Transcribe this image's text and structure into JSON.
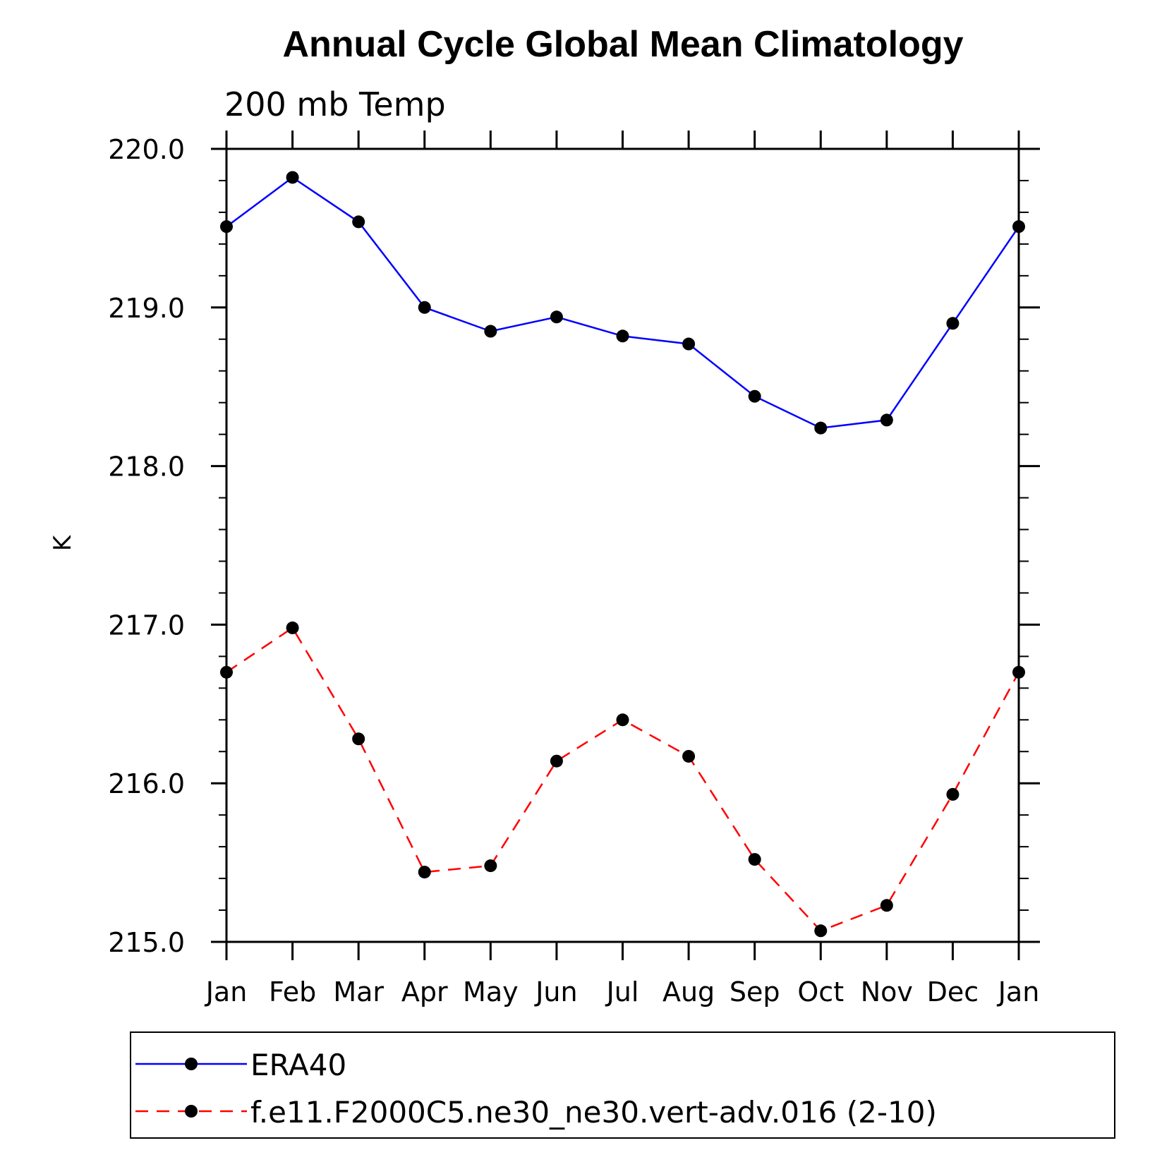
{
  "chart_data": {
    "type": "line",
    "title": "Annual Cycle Global Mean Climatology",
    "subtitle": "200 mb Temp",
    "ylabel": "K",
    "xlabel": "",
    "categories": [
      "Jan",
      "Feb",
      "Mar",
      "Apr",
      "May",
      "Jun",
      "Jul",
      "Aug",
      "Sep",
      "Oct",
      "Nov",
      "Dec",
      "Jan"
    ],
    "ylim": [
      215.0,
      220.0
    ],
    "yticks": [
      "215.0",
      "216.0",
      "217.0",
      "218.0",
      "219.0",
      "220.0"
    ],
    "grid": false,
    "legend_placement": "bottom",
    "series": [
      {
        "name": "ERA40",
        "color": "#0000ff",
        "line_style": "solid",
        "marker": "circle",
        "values": [
          219.51,
          219.82,
          219.54,
          219.0,
          218.85,
          218.94,
          218.82,
          218.77,
          218.44,
          218.24,
          218.29,
          218.9,
          219.51
        ]
      },
      {
        "name": "f.e11.F2000C5.ne30_ne30.vert-adv.016 (2-10)",
        "color": "#ff0000",
        "line_style": "dashed",
        "marker": "circle",
        "values": [
          216.7,
          216.98,
          216.28,
          215.44,
          215.48,
          216.14,
          216.4,
          216.17,
          215.52,
          215.07,
          215.23,
          215.93,
          216.7
        ]
      }
    ]
  }
}
